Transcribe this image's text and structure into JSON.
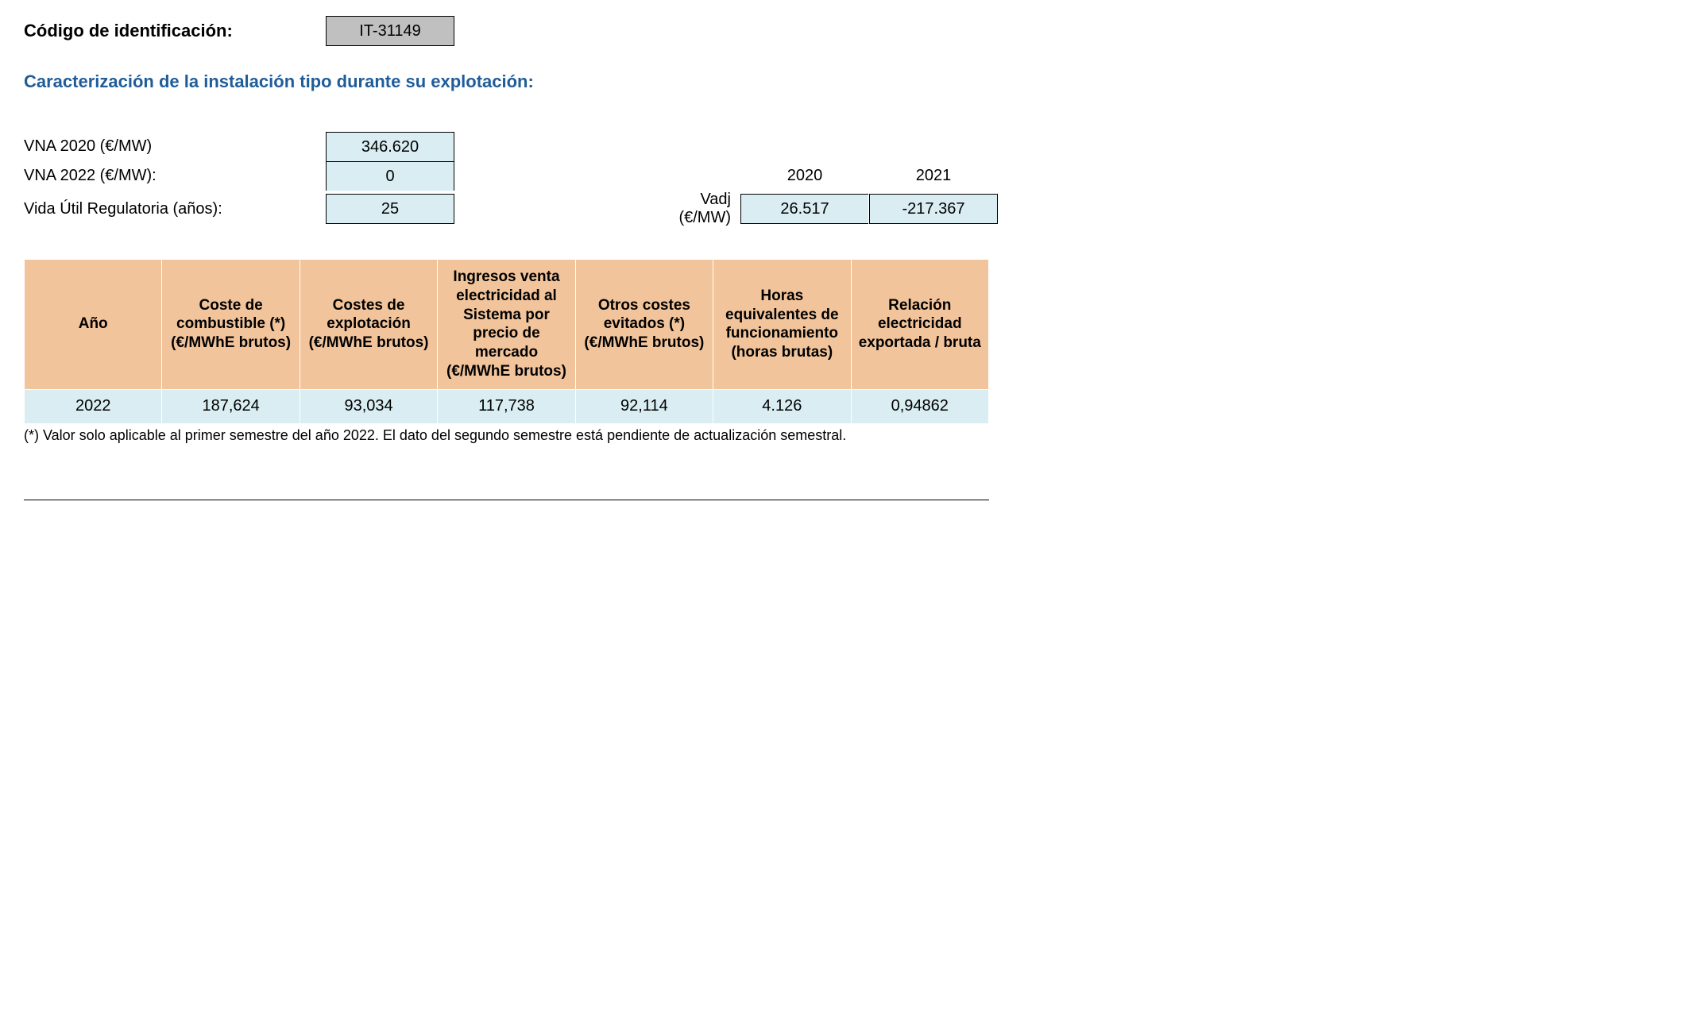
{
  "header": {
    "id_label": "Código de identificación:",
    "id_value": "IT-31149",
    "subtitle": "Caracterización de la instalación tipo durante su explotación:"
  },
  "params": {
    "vna2020_label": "VNA 2020 (€/MW)",
    "vna2020_value": "346.620",
    "vna2022_label": "VNA 2022 (€/MW):",
    "vna2022_value": "0",
    "vida_label": "Vida Útil Regulatoria (años):",
    "vida_value": "25",
    "vadj_label": "Vadj (€/MW)",
    "year_2020": "2020",
    "year_2021": "2021",
    "vadj_2020": "26.517",
    "vadj_2021": "-217.367"
  },
  "table": {
    "headers": {
      "c1": "Año",
      "c2": "Coste de combustible (*) (€/MWhE brutos)",
      "c3": "Costes de explotación (€/MWhE brutos)",
      "c4": "Ingresos venta electricidad al Sistema por precio de mercado (€/MWhE brutos)",
      "c5": "Otros costes evitados (*) (€/MWhE brutos)",
      "c6": "Horas equivalentes de funcionamiento (horas brutas)",
      "c7": "Relación electricidad exportada / bruta"
    },
    "row": {
      "c1": "2022",
      "c2": "187,624",
      "c3": "93,034",
      "c4": "117,738",
      "c5": "92,114",
      "c6": "4.126",
      "c7": "0,94862"
    },
    "footnote": "(*) Valor solo aplicable al primer semestre del año 2022. El dato del segundo semestre está pendiente de actualización semestral."
  },
  "colors": {
    "heading": "#1f5d9a",
    "id_box_bg": "#c0c0c0",
    "val_box_bg": "#d9edf2",
    "th_bg": "#f2c49b",
    "td_bg": "#d9edf2"
  }
}
